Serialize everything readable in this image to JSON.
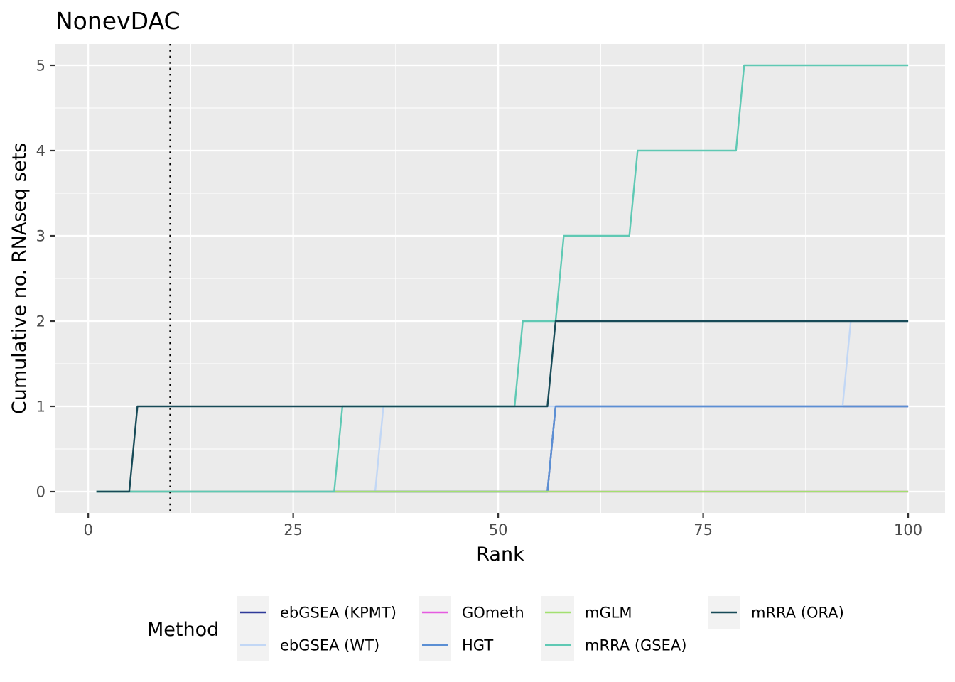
{
  "chart_data": {
    "type": "line",
    "title": "NonevDAC",
    "xlabel": "Rank",
    "ylabel": "Cumulative no. RNAseq sets",
    "xlim": [
      -4,
      104.5
    ],
    "ylim": [
      -0.25,
      5.25
    ],
    "x_ticks": [
      0,
      25,
      50,
      75,
      100
    ],
    "y_ticks": [
      0,
      1,
      2,
      3,
      4,
      5
    ],
    "grid": true,
    "vline": {
      "x": 10,
      "style": "dotted",
      "color": "#000000"
    },
    "legend": {
      "title": "Method",
      "position": "bottom"
    },
    "series": [
      {
        "name": "ebGSEA (KPMT)",
        "color": "#2e3a99",
        "x": [
          1,
          56,
          57,
          100
        ],
        "y": [
          0,
          0,
          1,
          1
        ]
      },
      {
        "name": "ebGSEA (WT)",
        "color": "#c2d7f5",
        "x": [
          1,
          35,
          36,
          92,
          93,
          100
        ],
        "y": [
          0,
          0,
          1,
          1,
          2,
          2
        ]
      },
      {
        "name": "GOmeth",
        "color": "#e55be0",
        "x": [
          1,
          100
        ],
        "y": [
          0,
          0
        ]
      },
      {
        "name": "HGT",
        "color": "#5b8fd4",
        "x": [
          1,
          56,
          57,
          100
        ],
        "y": [
          0,
          0,
          1,
          1
        ]
      },
      {
        "name": "mGLM",
        "color": "#a3e070",
        "x": [
          1,
          100
        ],
        "y": [
          0,
          0
        ]
      },
      {
        "name": "mRRA (GSEA)",
        "color": "#5fc9b4",
        "x": [
          1,
          30,
          31,
          52,
          53,
          57,
          58,
          66,
          67,
          79,
          80,
          100
        ],
        "y": [
          0,
          0,
          1,
          1,
          2,
          2,
          3,
          3,
          4,
          4,
          5,
          5
        ]
      },
      {
        "name": "mRRA (ORA)",
        "color": "#174a57",
        "x": [
          1,
          5,
          6,
          56,
          57,
          100
        ],
        "y": [
          0,
          0,
          1,
          1,
          2,
          2
        ]
      }
    ]
  }
}
